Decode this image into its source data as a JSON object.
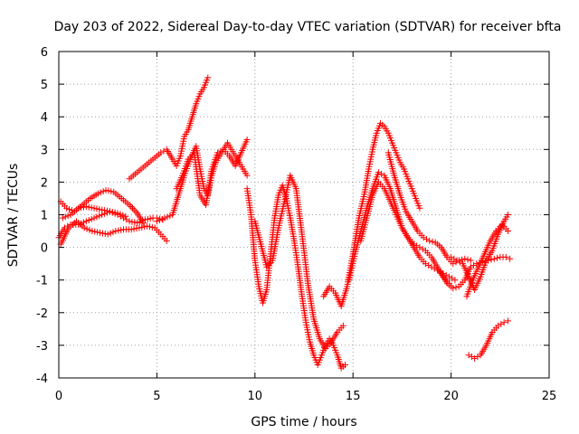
{
  "chart_data": {
    "type": "scatter",
    "title": "Day 203 of 2022, Sidereal Day-to-day VTEC variation (SDTVAR) for receiver bfta",
    "xlabel": "GPS time / hours",
    "ylabel": "SDTVAR / TECUs",
    "xlim": [
      0,
      25
    ],
    "ylim": [
      -4,
      6
    ],
    "xticks": [
      0,
      5,
      10,
      15,
      20,
      25
    ],
    "yticks": [
      -4,
      -3,
      -2,
      -1,
      0,
      1,
      2,
      3,
      4,
      5,
      6
    ],
    "grid": true,
    "legend": "none",
    "marker": "plus",
    "color": "#ff0000",
    "series": [
      {
        "x": [
          0.0,
          0.3,
          0.6,
          1.0,
          1.4,
          1.8,
          2.2,
          2.6,
          3.0,
          3.3,
          3.6,
          4.0,
          4.4,
          4.8,
          5.0,
          5.3
        ],
        "y": [
          0.3,
          0.6,
          0.7,
          0.7,
          0.8,
          0.9,
          1.0,
          1.1,
          1.0,
          0.9,
          0.8,
          0.75,
          0.85,
          0.9,
          0.9,
          0.85
        ]
      },
      {
        "x": [
          0.1,
          0.4,
          0.8,
          1.2,
          1.6,
          2.0,
          2.4,
          2.8,
          3.2,
          3.6,
          4.0,
          4.3
        ],
        "y": [
          1.4,
          1.2,
          1.1,
          1.3,
          1.5,
          1.65,
          1.75,
          1.7,
          1.5,
          1.3,
          1.05,
          0.75
        ]
      },
      {
        "x": [
          0.1,
          0.5,
          0.9,
          1.3,
          1.7,
          2.1,
          2.5,
          2.9,
          3.3,
          3.7,
          4.1,
          4.5,
          4.9,
          5.2,
          5.5
        ],
        "y": [
          0.1,
          0.6,
          0.8,
          0.6,
          0.5,
          0.45,
          0.4,
          0.5,
          0.55,
          0.55,
          0.6,
          0.65,
          0.6,
          0.4,
          0.2
        ]
      },
      {
        "x": [
          0.2,
          0.6,
          1.0,
          1.4,
          1.8,
          2.2,
          2.6,
          3.0,
          3.4
        ],
        "y": [
          0.9,
          1.0,
          1.2,
          1.25,
          1.2,
          1.15,
          1.1,
          1.05,
          0.95
        ]
      },
      {
        "x": [
          3.6,
          4.0,
          4.4,
          4.8,
          5.2,
          5.5,
          5.8,
          6.0,
          6.2,
          6.4,
          6.6,
          6.8,
          7.0,
          7.2,
          7.4,
          7.6
        ],
        "y": [
          2.1,
          2.3,
          2.5,
          2.7,
          2.9,
          3.0,
          2.7,
          2.5,
          2.8,
          3.4,
          3.6,
          4.0,
          4.4,
          4.7,
          4.9,
          5.2
        ]
      },
      {
        "x": [
          5.0,
          5.4,
          5.8,
          6.1,
          6.4,
          6.7,
          7.0,
          7.2,
          7.4,
          7.6,
          7.8,
          8.0,
          8.2,
          8.4,
          8.6,
          8.8,
          9.0,
          9.2,
          9.4,
          9.6
        ],
        "y": [
          0.8,
          0.9,
          1.0,
          1.6,
          2.2,
          2.7,
          3.1,
          2.4,
          1.8,
          1.6,
          2.2,
          2.6,
          2.8,
          3.0,
          3.2,
          3.0,
          2.8,
          2.6,
          2.4,
          2.2
        ]
      },
      {
        "x": [
          6.0,
          6.3,
          6.6,
          6.9,
          7.2,
          7.5,
          7.8,
          8.1,
          8.4,
          8.7,
          9.0,
          9.3,
          9.6
        ],
        "y": [
          1.8,
          2.2,
          2.7,
          2.9,
          1.6,
          1.3,
          2.4,
          2.9,
          3.0,
          2.8,
          2.5,
          2.9,
          3.3
        ]
      },
      {
        "x": [
          9.6,
          9.8,
          10.0,
          10.2,
          10.4,
          10.6,
          10.8,
          11.0,
          11.2,
          11.4,
          11.6,
          11.8,
          12.0,
          12.2,
          12.4,
          12.6,
          12.8,
          13.0,
          13.2,
          13.4,
          13.6,
          13.8,
          14.0,
          14.2,
          14.4,
          14.6
        ],
        "y": [
          1.8,
          1.0,
          -0.4,
          -1.2,
          -1.7,
          -1.3,
          -0.2,
          0.9,
          1.6,
          1.9,
          1.5,
          0.9,
          0.2,
          -0.6,
          -1.5,
          -2.3,
          -2.9,
          -3.3,
          -3.6,
          -3.3,
          -3.0,
          -2.8,
          -3.0,
          -3.3,
          -3.7,
          -3.6
        ]
      },
      {
        "x": [
          10.0,
          10.3,
          10.6,
          10.9,
          11.2,
          11.5,
          11.8,
          12.1,
          12.4,
          12.7,
          13.0,
          13.3,
          13.6,
          13.9,
          14.2,
          14.5
        ],
        "y": [
          0.8,
          0.1,
          -0.6,
          -0.4,
          0.6,
          1.4,
          2.2,
          1.8,
          0.4,
          -1.1,
          -2.2,
          -2.8,
          -3.1,
          -2.9,
          -2.6,
          -2.4
        ]
      },
      {
        "x": [
          13.5,
          13.8,
          14.1,
          14.4,
          14.7,
          15.0,
          15.3,
          15.6,
          15.8,
          16.0,
          16.2,
          16.4,
          16.6,
          16.8,
          17.0,
          17.2,
          17.4,
          17.6,
          17.8,
          18.0,
          18.2,
          18.4
        ],
        "y": [
          -1.5,
          -1.2,
          -1.4,
          -1.8,
          -1.2,
          -0.2,
          0.9,
          1.7,
          2.4,
          3.0,
          3.5,
          3.8,
          3.7,
          3.5,
          3.2,
          2.9,
          2.6,
          2.4,
          2.1,
          1.8,
          1.5,
          1.2
        ]
      },
      {
        "x": [
          14.8,
          15.1,
          15.4,
          15.7,
          16.0,
          16.3,
          16.6,
          16.9,
          17.2,
          17.5,
          17.8,
          18.1,
          18.4,
          18.7,
          19.0,
          19.3,
          19.6,
          19.9
        ],
        "y": [
          -1.0,
          -0.2,
          0.5,
          1.2,
          1.8,
          2.3,
          2.2,
          1.8,
          1.2,
          0.6,
          0.3,
          0.1,
          0.0,
          -0.1,
          -0.3,
          -0.6,
          -0.9,
          -1.1
        ]
      },
      {
        "x": [
          15.4,
          15.7,
          16.0,
          16.3,
          16.6,
          16.9,
          17.2,
          17.5,
          17.8,
          18.1,
          18.4,
          18.7,
          19.0,
          19.3,
          19.6,
          19.9,
          20.2
        ],
        "y": [
          0.2,
          0.9,
          1.6,
          2.0,
          1.8,
          1.4,
          1.0,
          0.6,
          0.3,
          0.0,
          -0.3,
          -0.5,
          -0.6,
          -0.7,
          -0.8,
          -0.9,
          -1.0
        ]
      },
      {
        "x": [
          16.8,
          17.1,
          17.4,
          17.7,
          18.0,
          18.3,
          18.6,
          18.9,
          19.2,
          19.5,
          19.8,
          20.1,
          20.4,
          20.7,
          21.0
        ],
        "y": [
          2.9,
          2.2,
          1.6,
          1.1,
          0.8,
          0.5,
          0.3,
          0.2,
          0.15,
          0.0,
          -0.3,
          -0.5,
          -0.4,
          -0.35,
          -0.4
        ]
      },
      {
        "x": [
          20.0,
          20.3,
          20.6,
          20.9,
          21.2,
          21.5,
          21.8,
          22.1,
          22.4,
          22.7,
          22.9
        ],
        "y": [
          -0.3,
          -0.4,
          -0.5,
          -0.9,
          -1.3,
          -0.9,
          -0.4,
          -0.1,
          0.4,
          0.8,
          1.0
        ]
      },
      {
        "x": [
          20.8,
          21.1,
          21.4,
          21.7,
          22.0,
          22.3,
          22.6,
          22.9
        ],
        "y": [
          -1.5,
          -1.0,
          -0.6,
          -0.2,
          0.2,
          0.5,
          0.7,
          0.5
        ]
      },
      {
        "x": [
          19.5,
          19.8,
          20.1,
          20.4,
          20.7,
          21.0,
          21.3,
          21.6,
          21.9,
          22.2,
          22.5,
          22.8,
          23.0
        ],
        "y": [
          -0.8,
          -1.1,
          -1.25,
          -1.2,
          -1.0,
          -0.6,
          -0.5,
          -0.45,
          -0.4,
          -0.35,
          -0.3,
          -0.3,
          -0.35
        ]
      },
      {
        "x": [
          20.9,
          21.2,
          21.5,
          21.8,
          22.1,
          22.4,
          22.7,
          22.9
        ],
        "y": [
          -3.3,
          -3.4,
          -3.3,
          -3.0,
          -2.6,
          -2.4,
          -2.3,
          -2.25
        ]
      }
    ]
  }
}
